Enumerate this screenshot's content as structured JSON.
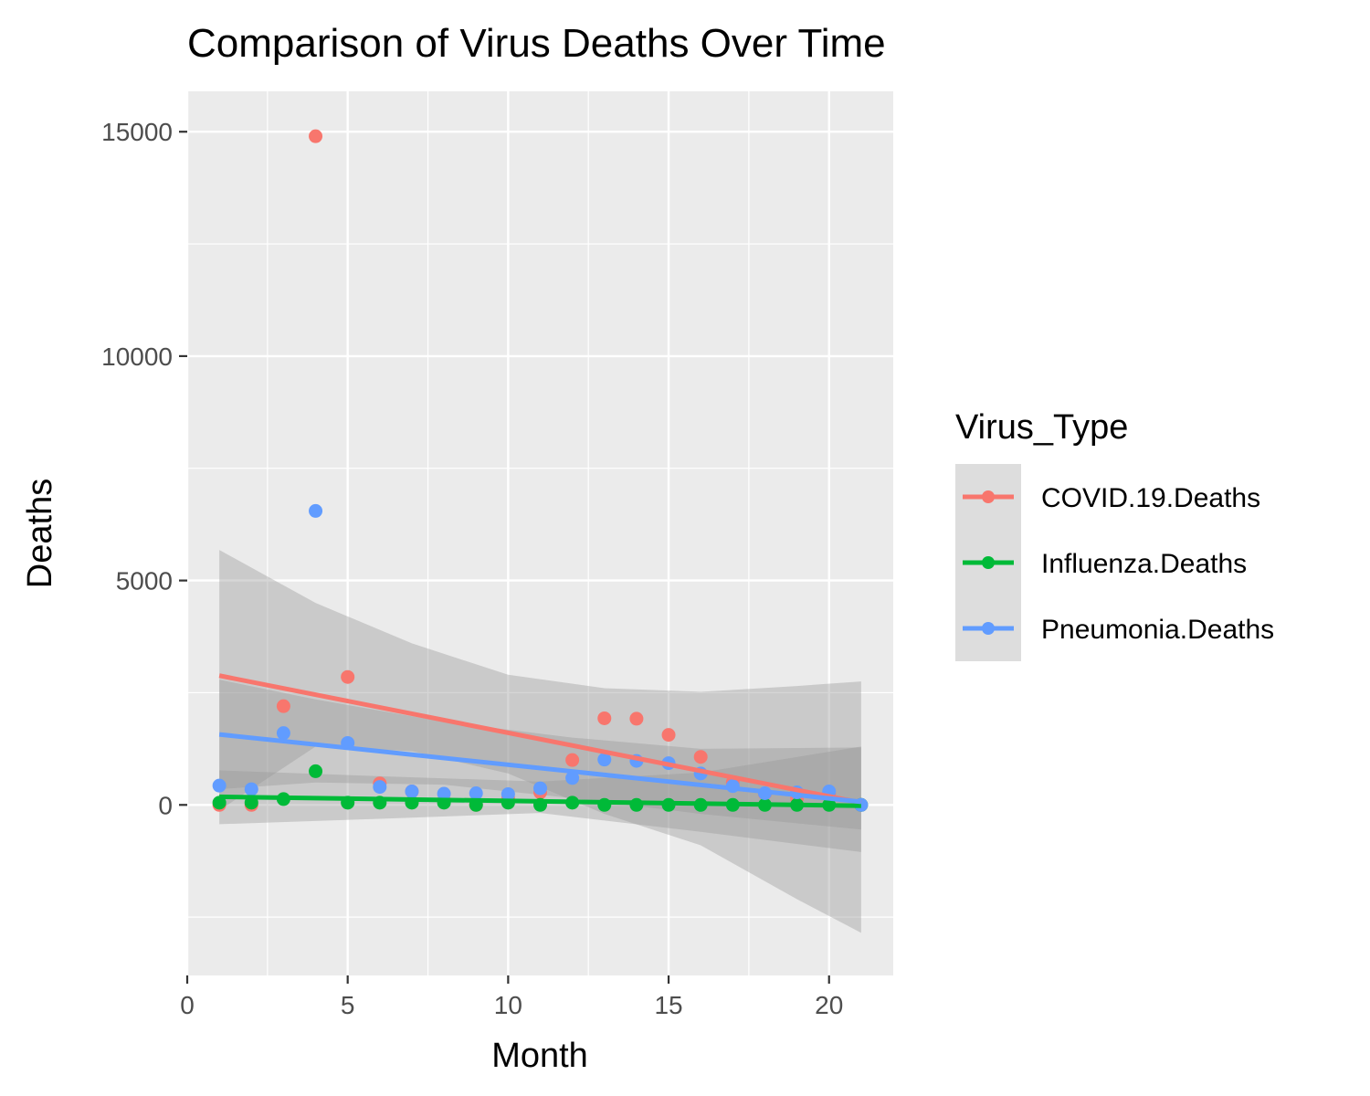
{
  "chart_data": {
    "type": "scatter",
    "title": "Comparison of Virus Deaths Over Time",
    "xlabel": "Month",
    "ylabel": "Deaths",
    "xlim": [
      0,
      22
    ],
    "ylim": [
      -3800,
      15900
    ],
    "x_ticks": [
      0,
      5,
      10,
      15,
      20
    ],
    "y_ticks": [
      0,
      5000,
      10000,
      15000
    ],
    "x_tick_labels": [
      "0",
      "5",
      "10",
      "15",
      "20"
    ],
    "y_tick_labels": [
      "0",
      "5000",
      "10000",
      "15000"
    ],
    "grid": true,
    "legend": {
      "title": "Virus_Type",
      "position": "right"
    },
    "series": [
      {
        "name": "COVID.19.Deaths",
        "color": "#f8766d",
        "points": [
          [
            1,
            0
          ],
          [
            2,
            0
          ],
          [
            3,
            2200
          ],
          [
            4,
            14900
          ],
          [
            5,
            2850
          ],
          [
            6,
            480
          ],
          [
            7,
            300
          ],
          [
            8,
            100
          ],
          [
            9,
            0
          ],
          [
            10,
            150
          ],
          [
            11,
            280
          ],
          [
            12,
            1000
          ],
          [
            13,
            1930
          ],
          [
            14,
            1920
          ],
          [
            15,
            1560
          ],
          [
            16,
            1070
          ],
          [
            17,
            500
          ],
          [
            18,
            250
          ],
          [
            19,
            150
          ],
          [
            20,
            250
          ],
          [
            21,
            0
          ]
        ],
        "trend": {
          "x": [
            1,
            21
          ],
          "y": [
            2880,
            50
          ]
        },
        "band_lower": [
          {
            "x": 1,
            "y": -120
          },
          {
            "x": 4,
            "y": 1300
          },
          {
            "x": 7,
            "y": 1200
          },
          {
            "x": 10,
            "y": 700
          },
          {
            "x": 13,
            "y": -200
          },
          {
            "x": 16,
            "y": -900
          },
          {
            "x": 19,
            "y": -2100
          },
          {
            "x": 21,
            "y": -2850
          }
        ],
        "band_upper": [
          {
            "x": 1,
            "y": 5680
          },
          {
            "x": 4,
            "y": 4500
          },
          {
            "x": 7,
            "y": 3600
          },
          {
            "x": 10,
            "y": 2900
          },
          {
            "x": 13,
            "y": 2600
          },
          {
            "x": 16,
            "y": 2520
          },
          {
            "x": 19,
            "y": 2650
          },
          {
            "x": 21,
            "y": 2750
          }
        ]
      },
      {
        "name": "Influenza.Deaths",
        "color": "#00ba38",
        "points": [
          [
            1,
            50
          ],
          [
            2,
            50
          ],
          [
            3,
            130
          ],
          [
            4,
            750
          ],
          [
            5,
            50
          ],
          [
            6,
            50
          ],
          [
            7,
            50
          ],
          [
            8,
            50
          ],
          [
            9,
            0
          ],
          [
            10,
            50
          ],
          [
            11,
            0
          ],
          [
            12,
            50
          ],
          [
            13,
            0
          ],
          [
            14,
            0
          ],
          [
            15,
            0
          ],
          [
            16,
            0
          ],
          [
            17,
            0
          ],
          [
            18,
            0
          ],
          [
            19,
            0
          ],
          [
            20,
            0
          ],
          [
            21,
            0
          ]
        ],
        "trend": {
          "x": [
            1,
            21
          ],
          "y": [
            180,
            -20
          ]
        },
        "band_lower": [
          {
            "x": 1,
            "y": -430
          },
          {
            "x": 6,
            "y": -310
          },
          {
            "x": 11,
            "y": -180
          },
          {
            "x": 16,
            "y": -600
          },
          {
            "x": 21,
            "y": -1050
          }
        ],
        "band_upper": [
          {
            "x": 1,
            "y": 770
          },
          {
            "x": 6,
            "y": 640
          },
          {
            "x": 11,
            "y": 520
          },
          {
            "x": 16,
            "y": 720
          },
          {
            "x": 21,
            "y": 1300
          }
        ]
      },
      {
        "name": "Pneumonia.Deaths",
        "color": "#619cff",
        "points": [
          [
            1,
            430
          ],
          [
            2,
            350
          ],
          [
            3,
            1600
          ],
          [
            4,
            6550
          ],
          [
            5,
            1380
          ],
          [
            6,
            400
          ],
          [
            7,
            300
          ],
          [
            8,
            250
          ],
          [
            9,
            260
          ],
          [
            10,
            240
          ],
          [
            11,
            370
          ],
          [
            12,
            600
          ],
          [
            13,
            1010
          ],
          [
            14,
            980
          ],
          [
            15,
            930
          ],
          [
            16,
            700
          ],
          [
            17,
            420
          ],
          [
            18,
            260
          ],
          [
            19,
            280
          ],
          [
            20,
            300
          ],
          [
            21,
            0
          ]
        ],
        "trend": {
          "x": [
            1,
            21
          ],
          "y": [
            1570,
            70
          ]
        },
        "band_lower": [
          {
            "x": 1,
            "y": 350
          },
          {
            "x": 4,
            "y": 500
          },
          {
            "x": 8,
            "y": 450
          },
          {
            "x": 12,
            "y": 150
          },
          {
            "x": 16,
            "y": -200
          },
          {
            "x": 21,
            "y": -550
          }
        ],
        "band_upper": [
          {
            "x": 1,
            "y": 2790
          },
          {
            "x": 4,
            "y": 2350
          },
          {
            "x": 8,
            "y": 1850
          },
          {
            "x": 12,
            "y": 1500
          },
          {
            "x": 16,
            "y": 1250
          },
          {
            "x": 21,
            "y": 1280
          }
        ]
      }
    ]
  }
}
